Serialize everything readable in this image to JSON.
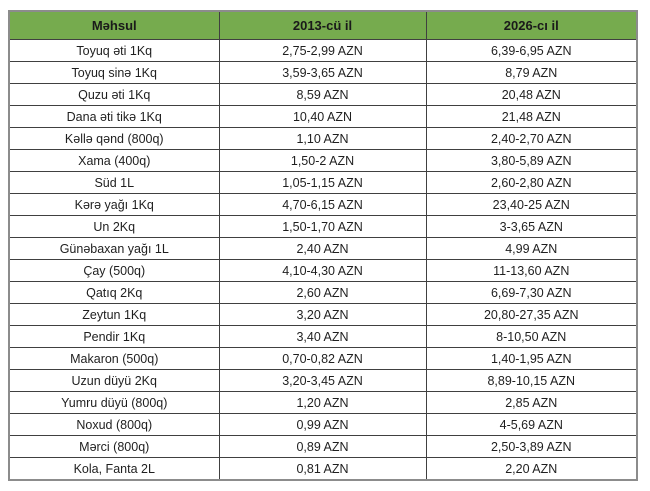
{
  "table": {
    "headers": [
      "Məhsul",
      "2013-cü il",
      "2026-cı il"
    ],
    "rows": [
      [
        "Toyuq əti 1Kq",
        "2,75-2,99 AZN",
        "6,39-6,95 AZN"
      ],
      [
        "Toyuq sinə 1Kq",
        "3,59-3,65 AZN",
        "8,79 AZN"
      ],
      [
        "Quzu əti 1Kq",
        "8,59 AZN",
        "20,48 AZN"
      ],
      [
        "Dana əti tikə 1Kq",
        "10,40 AZN",
        "21,48 AZN"
      ],
      [
        "Kəllə qənd (800q)",
        "1,10 AZN",
        "2,40-2,70 AZN"
      ],
      [
        "Xama (400q)",
        "1,50-2 AZN",
        "3,80-5,89 AZN"
      ],
      [
        "Süd 1L",
        "1,05-1,15 AZN",
        "2,60-2,80 AZN"
      ],
      [
        "Kərə yağı 1Kq",
        "4,70-6,15 AZN",
        "23,40-25 AZN"
      ],
      [
        "Un 2Kq",
        "1,50-1,70 AZN",
        "3-3,65 AZN"
      ],
      [
        "Günəbaxan yağı 1L",
        "2,40 AZN",
        "4,99 AZN"
      ],
      [
        "Çay (500q)",
        "4,10-4,30 AZN",
        "11-13,60 AZN"
      ],
      [
        "Qatıq 2Kq",
        "2,60 AZN",
        "6,69-7,30 AZN"
      ],
      [
        "Zeytun 1Kq",
        "3,20 AZN",
        "20,80-27,35 AZN"
      ],
      [
        "Pendir 1Kq",
        "3,40 AZN",
        "8-10,50 AZN"
      ],
      [
        "Makaron (500q)",
        "0,70-0,82 AZN",
        "1,40-1,95 AZN"
      ],
      [
        "Uzun düyü 2Kq",
        "3,20-3,45 AZN",
        "8,89-10,15 AZN"
      ],
      [
        "Yumru düyü (800q)",
        "1,20 AZN",
        "2,85 AZN"
      ],
      [
        "Noxud (800q)",
        "0,99 AZN",
        "4-5,69 AZN"
      ],
      [
        "Mərci (800q)",
        "0,89 AZN",
        "2,50-3,89 AZN"
      ],
      [
        "Kola, Fanta 2L",
        "0,81 AZN",
        "2,20 AZN"
      ]
    ]
  },
  "colors": {
    "header_bg": "#76ab4e",
    "header_text": "#1a1a1a",
    "cell_text": "#1f1f1f",
    "border_inner": "#404040",
    "border_outer": "#8c8c8c"
  }
}
